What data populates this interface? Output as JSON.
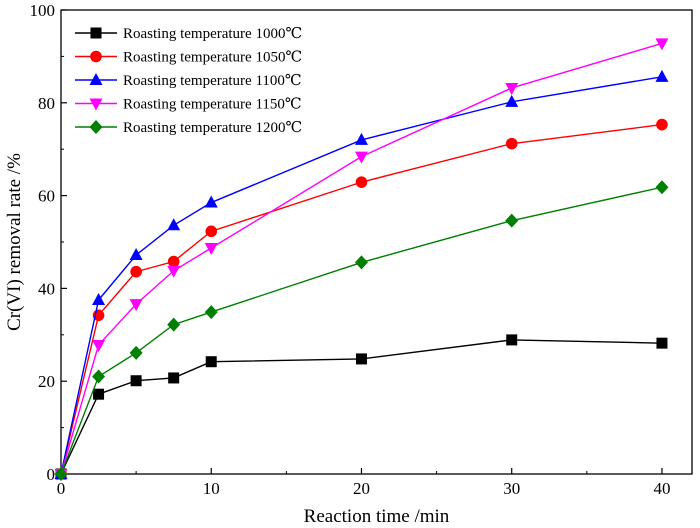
{
  "chart_data": {
    "type": "line",
    "title": "",
    "xlabel": "Reaction time /min",
    "ylabel": "Cr(VI) removal rate /%",
    "xlim": [
      0,
      42
    ],
    "ylim": [
      0,
      100
    ],
    "xticks": [
      0,
      10,
      20,
      30,
      40
    ],
    "yticks": [
      0,
      20,
      40,
      60,
      80,
      100
    ],
    "grid": false,
    "legend_position": "top-left",
    "x": [
      0,
      2.5,
      5,
      7.5,
      10,
      20,
      30,
      40
    ],
    "series": [
      {
        "name": "Roasting temperature 1000℃",
        "color": "#000000",
        "marker": "square",
        "values": [
          0,
          17.2,
          20.1,
          20.7,
          24.2,
          24.8,
          28.9,
          28.2
        ]
      },
      {
        "name": "Roasting temperature 1050℃",
        "color": "#ff0000",
        "marker": "circle",
        "values": [
          0,
          34.2,
          43.6,
          45.8,
          52.3,
          62.9,
          71.2,
          75.3
        ]
      },
      {
        "name": "Roasting temperature 1100℃",
        "color": "#0000ff",
        "marker": "triangle-up",
        "values": [
          0,
          37.5,
          47.2,
          53.6,
          58.5,
          72.0,
          80.2,
          85.6
        ]
      },
      {
        "name": "Roasting temperature 1150℃",
        "color": "#ff00ff",
        "marker": "triangle-down",
        "values": [
          0,
          27.8,
          36.6,
          43.8,
          48.7,
          68.4,
          83.2,
          92.8
        ]
      },
      {
        "name": "Roasting temperature 1200℃",
        "color": "#008000",
        "marker": "diamond",
        "values": [
          0,
          21.0,
          26.1,
          32.2,
          34.9,
          45.6,
          54.6,
          61.8
        ]
      }
    ]
  }
}
